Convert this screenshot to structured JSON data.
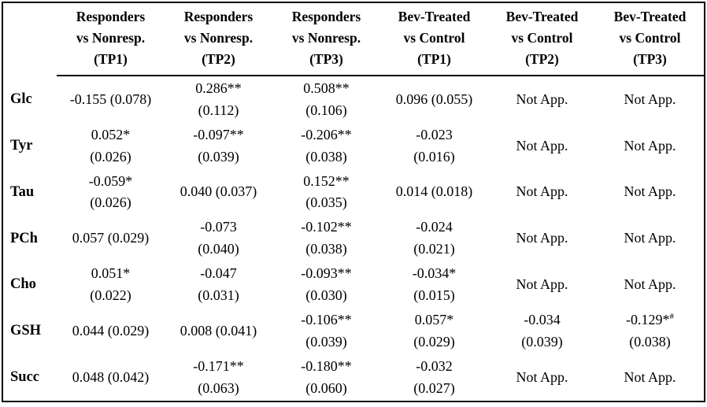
{
  "table": {
    "corner_label": "",
    "columns": [
      {
        "lines": [
          "Responders",
          "vs Nonresp.",
          "(TP1)"
        ]
      },
      {
        "lines": [
          "Responders",
          "vs Nonresp.",
          "(TP2)"
        ]
      },
      {
        "lines": [
          "Responders",
          "vs Nonresp.",
          "(TP3)"
        ]
      },
      {
        "lines": [
          "Bev-Treated",
          "vs Control",
          "(TP1)"
        ]
      },
      {
        "lines": [
          "Bev-Treated",
          "vs Control",
          "(TP2)"
        ]
      },
      {
        "lines": [
          "Bev-Treated",
          "vs Control",
          "(TP3)"
        ]
      }
    ],
    "rows": [
      {
        "label": "Glc",
        "cells": [
          {
            "value": "-0.155 (0.078)",
            "sup": "",
            "se": ""
          },
          {
            "value": "0.286**",
            "sup": "",
            "se": "(0.112)"
          },
          {
            "value": "0.508**",
            "sup": "",
            "se": "(0.106)"
          },
          {
            "value": "0.096 (0.055)",
            "sup": "",
            "se": ""
          },
          {
            "value": "Not App.",
            "sup": "",
            "se": ""
          },
          {
            "value": "Not App.",
            "sup": "",
            "se": ""
          }
        ]
      },
      {
        "label": "Tyr",
        "cells": [
          {
            "value": "0.052*",
            "sup": "",
            "se": "(0.026)"
          },
          {
            "value": "-0.097**",
            "sup": "",
            "se": "(0.039)"
          },
          {
            "value": "-0.206**",
            "sup": "",
            "se": "(0.038)"
          },
          {
            "value": "-0.023",
            "sup": "",
            "se": "(0.016)"
          },
          {
            "value": "Not App.",
            "sup": "",
            "se": ""
          },
          {
            "value": "Not App.",
            "sup": "",
            "se": ""
          }
        ]
      },
      {
        "label": "Tau",
        "cells": [
          {
            "value": "-0.059*",
            "sup": "",
            "se": "(0.026)"
          },
          {
            "value": "0.040 (0.037)",
            "sup": "",
            "se": ""
          },
          {
            "value": "0.152**",
            "sup": "",
            "se": "(0.035)"
          },
          {
            "value": "0.014 (0.018)",
            "sup": "",
            "se": ""
          },
          {
            "value": "Not App.",
            "sup": "",
            "se": ""
          },
          {
            "value": "Not App.",
            "sup": "",
            "se": ""
          }
        ]
      },
      {
        "label": "PCh",
        "cells": [
          {
            "value": "0.057 (0.029)",
            "sup": "",
            "se": ""
          },
          {
            "value": "-0.073",
            "sup": "",
            "se": "(0.040)"
          },
          {
            "value": "-0.102**",
            "sup": "",
            "se": "(0.038)"
          },
          {
            "value": "-0.024",
            "sup": "",
            "se": "(0.021)"
          },
          {
            "value": "Not App.",
            "sup": "",
            "se": ""
          },
          {
            "value": "Not App.",
            "sup": "",
            "se": ""
          }
        ]
      },
      {
        "label": "Cho",
        "cells": [
          {
            "value": "0.051*",
            "sup": "",
            "se": "(0.022)"
          },
          {
            "value": "-0.047",
            "sup": "",
            "se": "(0.031)"
          },
          {
            "value": "-0.093**",
            "sup": "",
            "se": "(0.030)"
          },
          {
            "value": "-0.034*",
            "sup": "",
            "se": "(0.015)"
          },
          {
            "value": "Not App.",
            "sup": "",
            "se": ""
          },
          {
            "value": "Not App.",
            "sup": "",
            "se": ""
          }
        ]
      },
      {
        "label": "GSH",
        "cells": [
          {
            "value": "0.044 (0.029)",
            "sup": "",
            "se": ""
          },
          {
            "value": "0.008 (0.041)",
            "sup": "",
            "se": ""
          },
          {
            "value": "-0.106**",
            "sup": "",
            "se": "(0.039)"
          },
          {
            "value": "0.057*",
            "sup": "",
            "se": "(0.029)"
          },
          {
            "value": "-0.034",
            "sup": "",
            "se": "(0.039)"
          },
          {
            "value": "-0.129*",
            "sup": "#",
            "se": "(0.038)"
          }
        ]
      },
      {
        "label": "Succ",
        "cells": [
          {
            "value": "0.048 (0.042)",
            "sup": "",
            "se": ""
          },
          {
            "value": "-0.171**",
            "sup": "",
            "se": "(0.063)"
          },
          {
            "value": "-0.180**",
            "sup": "",
            "se": "(0.060)"
          },
          {
            "value": "-0.032",
            "sup": "",
            "se": "(0.027)"
          },
          {
            "value": "Not App.",
            "sup": "",
            "se": ""
          },
          {
            "value": "Not App.",
            "sup": "",
            "se": ""
          }
        ]
      }
    ]
  }
}
